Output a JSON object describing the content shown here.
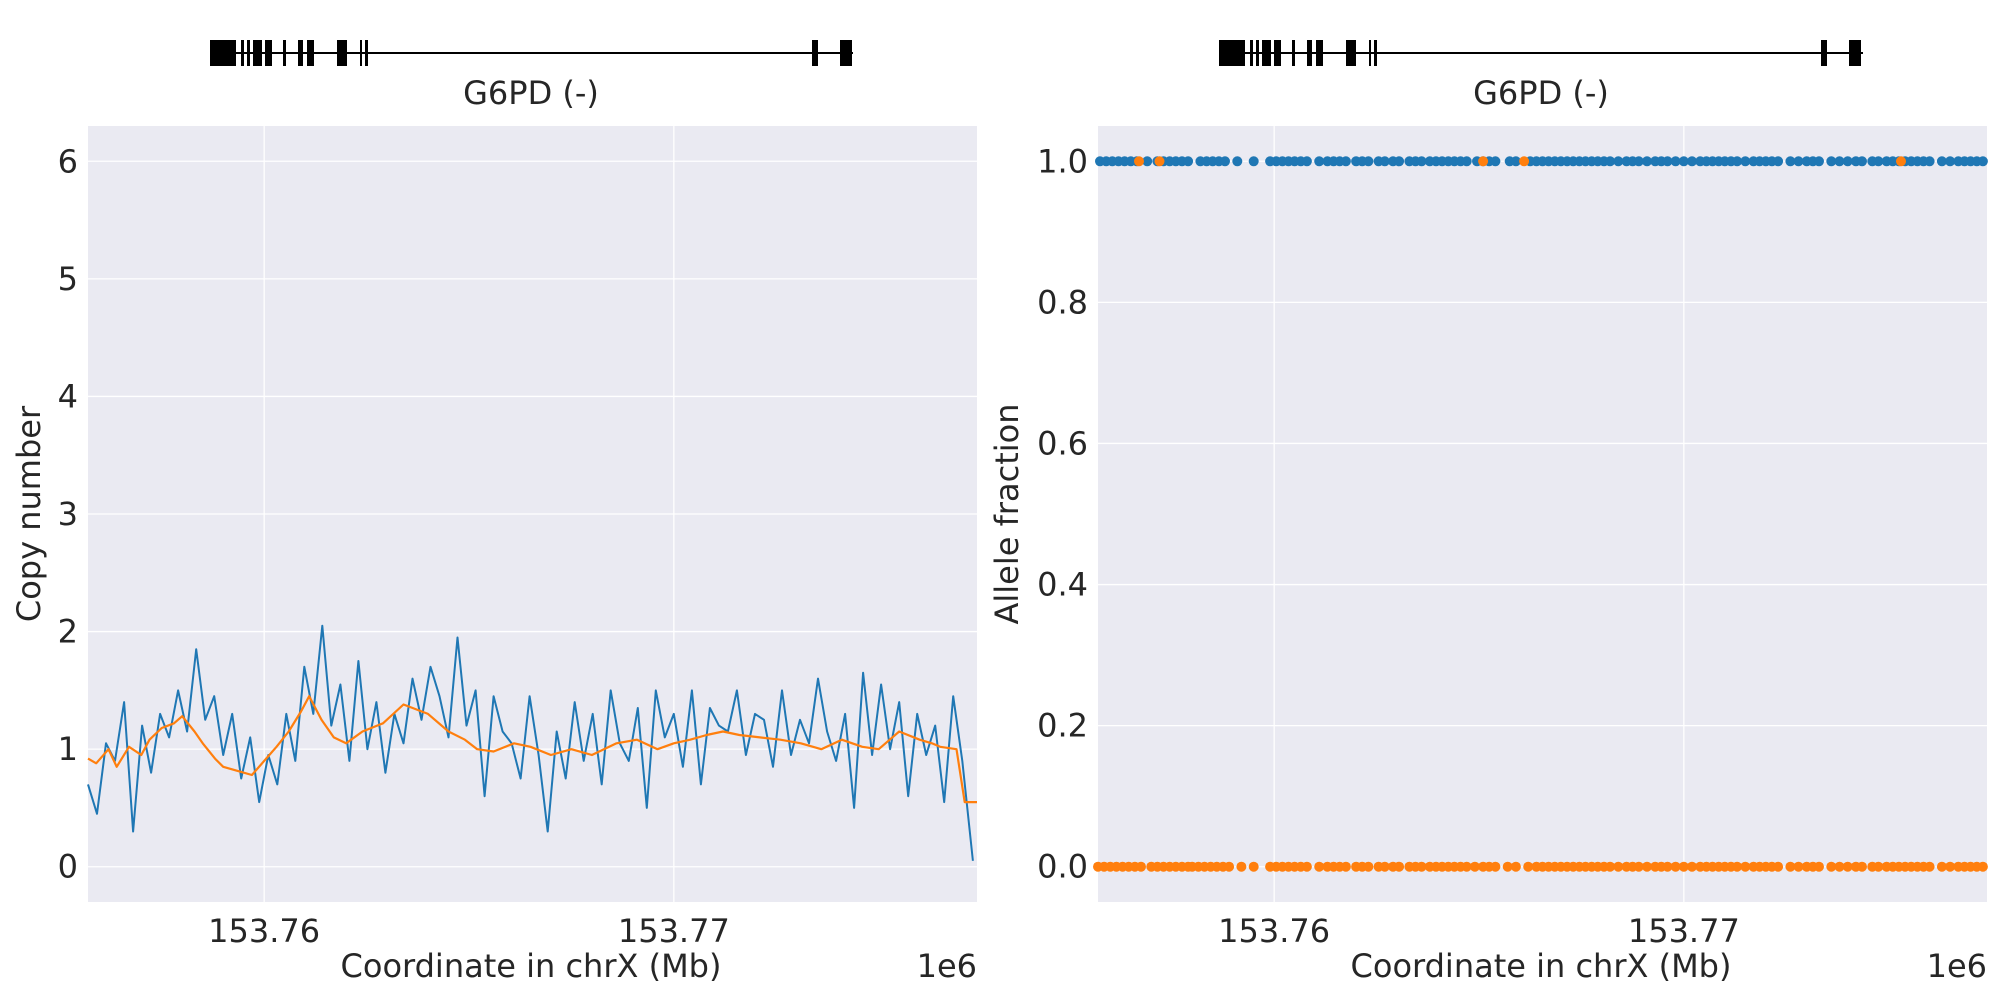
{
  "chart_data": [
    {
      "type": "line",
      "gene_track": {
        "label": "G6PD (-)"
      },
      "xlabel": "Coordinate in chrX (Mb)",
      "x_offset_label": "1e6",
      "ylabel": "Copy number",
      "xlim": [
        153.7557,
        153.7774
      ],
      "ylim": [
        -0.3,
        6.3
      ],
      "x_ticks": [
        153.76,
        153.77
      ],
      "x_tick_labels": [
        "153.76",
        "153.77"
      ],
      "y_ticks": [
        0,
        1,
        2,
        3,
        4,
        5,
        6
      ],
      "y_tick_labels": [
        "0",
        "1",
        "2",
        "3",
        "4",
        "5",
        "6"
      ],
      "grid": true,
      "series": [
        {
          "color": "#1f77b4",
          "x": [
            153.7557,
            153.75592,
            153.75614,
            153.75636,
            153.75658,
            153.7568,
            153.75702,
            153.75724,
            153.75746,
            153.75768,
            153.7579,
            153.75812,
            153.75834,
            153.75856,
            153.75878,
            153.759,
            153.75922,
            153.75944,
            153.75966,
            153.75988,
            153.7601,
            153.76032,
            153.76054,
            153.76076,
            153.76098,
            153.7612,
            153.76142,
            153.76164,
            153.76186,
            153.76208,
            153.7623,
            153.76252,
            153.76274,
            153.76296,
            153.76318,
            153.7634,
            153.76362,
            153.76384,
            153.76406,
            153.76428,
            153.7645,
            153.76472,
            153.76494,
            153.76516,
            153.76538,
            153.7656,
            153.76582,
            153.76604,
            153.76626,
            153.76648,
            153.7667,
            153.76692,
            153.76714,
            153.76736,
            153.76758,
            153.7678,
            153.76802,
            153.76824,
            153.76846,
            153.76868,
            153.7689,
            153.76912,
            153.76934,
            153.76956,
            153.76978,
            153.77,
            153.77022,
            153.77044,
            153.77066,
            153.77088,
            153.7711,
            153.77132,
            153.77154,
            153.77176,
            153.77198,
            153.7722,
            153.77242,
            153.77264,
            153.77286,
            153.77308,
            153.7733,
            153.77352,
            153.77374,
            153.77396,
            153.77418,
            153.7744,
            153.77462,
            153.77484,
            153.77506,
            153.77528,
            153.7755,
            153.77572,
            153.77594,
            153.77616,
            153.77638,
            153.7766,
            153.77682,
            153.77704,
            153.7773
          ],
          "y": [
            0.7,
            0.45,
            1.05,
            0.9,
            1.4,
            0.3,
            1.2,
            0.8,
            1.3,
            1.1,
            1.5,
            1.15,
            1.85,
            1.25,
            1.45,
            0.95,
            1.3,
            0.75,
            1.1,
            0.55,
            0.95,
            0.7,
            1.3,
            0.9,
            1.7,
            1.3,
            2.05,
            1.2,
            1.55,
            0.9,
            1.75,
            1.0,
            1.4,
            0.8,
            1.3,
            1.05,
            1.6,
            1.25,
            1.7,
            1.45,
            1.1,
            1.95,
            1.2,
            1.5,
            0.6,
            1.45,
            1.15,
            1.05,
            0.75,
            1.45,
            0.95,
            0.3,
            1.15,
            0.75,
            1.4,
            0.9,
            1.3,
            0.7,
            1.5,
            1.05,
            0.9,
            1.35,
            0.5,
            1.5,
            1.1,
            1.3,
            0.85,
            1.5,
            0.7,
            1.35,
            1.2,
            1.15,
            1.5,
            0.95,
            1.3,
            1.25,
            0.85,
            1.5,
            0.95,
            1.25,
            1.05,
            1.6,
            1.15,
            0.9,
            1.3,
            0.5,
            1.65,
            0.95,
            1.55,
            1.0,
            1.4,
            0.6,
            1.3,
            0.95,
            1.2,
            0.55,
            1.45,
            0.9,
            0.05
          ]
        },
        {
          "color": "#ff7f0e",
          "x": [
            153.7557,
            153.7559,
            153.7562,
            153.7564,
            153.7567,
            153.757,
            153.7572,
            153.7575,
            153.7578,
            153.758,
            153.7583,
            153.7585,
            153.7588,
            153.759,
            153.7593,
            153.7597,
            153.76,
            153.7603,
            153.7606,
            153.7609,
            153.7611,
            153.7614,
            153.7617,
            153.762,
            153.7624,
            153.7629,
            153.7634,
            153.764,
            153.7645,
            153.7649,
            153.7652,
            153.7656,
            153.7661,
            153.7665,
            153.767,
            153.7675,
            153.768,
            153.7686,
            153.7691,
            153.7696,
            153.77,
            153.7704,
            153.7708,
            153.7712,
            153.7716,
            153.7721,
            153.7726,
            153.7731,
            153.7736,
            153.7741,
            153.7746,
            153.775,
            153.7755,
            153.776,
            153.7763,
            153.7765,
            153.7769,
            153.7771,
            153.7774
          ],
          "y": [
            0.92,
            0.88,
            1.0,
            0.85,
            1.02,
            0.95,
            1.08,
            1.18,
            1.22,
            1.28,
            1.15,
            1.05,
            0.92,
            0.85,
            0.82,
            0.78,
            0.9,
            1.02,
            1.15,
            1.32,
            1.45,
            1.25,
            1.1,
            1.05,
            1.15,
            1.22,
            1.38,
            1.3,
            1.15,
            1.08,
            1.0,
            0.98,
            1.05,
            1.02,
            0.95,
            1.0,
            0.95,
            1.05,
            1.08,
            1.0,
            1.05,
            1.08,
            1.12,
            1.15,
            1.12,
            1.1,
            1.08,
            1.05,
            1.0,
            1.08,
            1.02,
            1.0,
            1.15,
            1.08,
            1.05,
            1.02,
            1.0,
            0.55,
            0.55
          ]
        }
      ]
    },
    {
      "type": "scatter",
      "gene_track": {
        "label": "G6PD (-)"
      },
      "xlabel": "Coordinate in chrX (Mb)",
      "x_offset_label": "1e6",
      "ylabel": "Allele fraction",
      "xlim": [
        153.7557,
        153.7774
      ],
      "ylim": [
        -0.05,
        1.05
      ],
      "x_ticks": [
        153.76,
        153.77
      ],
      "x_tick_labels": [
        "153.76",
        "153.77"
      ],
      "y_ticks": [
        0.0,
        0.2,
        0.4,
        0.6,
        0.8,
        1.0
      ],
      "y_tick_labels": [
        "0.0",
        "0.2",
        "0.4",
        "0.6",
        "0.8",
        "1.0"
      ],
      "grid": true,
      "series": [
        {
          "color": "#1f77b4",
          "x": [
            153.75575,
            153.7559,
            153.75605,
            153.7562,
            153.75635,
            153.7565,
            153.75665,
            153.7569,
            153.75715,
            153.7573,
            153.75745,
            153.7576,
            153.75775,
            153.7579,
            153.7582,
            153.75835,
            153.7585,
            153.75865,
            153.7588,
            153.7591,
            153.7595,
            153.7599,
            153.76005,
            153.7602,
            153.76035,
            153.7605,
            153.76065,
            153.7608,
            153.7611,
            153.7613,
            153.76145,
            153.7616,
            153.76175,
            153.762,
            153.76215,
            153.7623,
            153.76255,
            153.7627,
            153.7629,
            153.76305,
            153.7633,
            153.76345,
            153.7636,
            153.7638,
            153.76395,
            153.7641,
            153.76425,
            153.7644,
            153.76455,
            153.7647,
            153.76495,
            153.7651,
            153.76525,
            153.7654,
            153.76575,
            153.7659,
            153.76625,
            153.7664,
            153.76655,
            153.7667,
            153.76685,
            153.767,
            153.76715,
            153.7673,
            153.76745,
            153.7676,
            153.76775,
            153.7679,
            153.76805,
            153.7682,
            153.7684,
            153.7686,
            153.76875,
            153.7689,
            153.7691,
            153.7693,
            153.76945,
            153.7696,
            153.7698,
            153.77,
            153.7702,
            153.7704,
            153.77055,
            153.7707,
            153.77085,
            153.771,
            153.77115,
            153.7713,
            153.7715,
            153.7717,
            153.77185,
            153.772,
            153.77215,
            153.7723,
            153.7726,
            153.7728,
            153.773,
            153.77315,
            153.7733,
            153.7736,
            153.7738,
            153.774,
            153.7742,
            153.77435,
            153.7746,
            153.77475,
            153.77495,
            153.7751,
            153.77525,
            153.7754,
            153.77555,
            153.7757,
            153.77585,
            153.776,
            153.7763,
            153.7765,
            153.7767,
            153.77685,
            153.777,
            153.77715,
            153.7773
          ],
          "y": [
            1.0,
            1.0,
            1.0,
            1.0,
            1.0,
            1.0,
            1.0,
            1.0,
            1.0,
            1.0,
            1.0,
            1.0,
            1.0,
            1.0,
            1.0,
            1.0,
            1.0,
            1.0,
            1.0,
            1.0,
            1.0,
            1.0,
            1.0,
            1.0,
            1.0,
            1.0,
            1.0,
            1.0,
            1.0,
            1.0,
            1.0,
            1.0,
            1.0,
            1.0,
            1.0,
            1.0,
            1.0,
            1.0,
            1.0,
            1.0,
            1.0,
            1.0,
            1.0,
            1.0,
            1.0,
            1.0,
            1.0,
            1.0,
            1.0,
            1.0,
            1.0,
            1.0,
            1.0,
            1.0,
            1.0,
            1.0,
            1.0,
            1.0,
            1.0,
            1.0,
            1.0,
            1.0,
            1.0,
            1.0,
            1.0,
            1.0,
            1.0,
            1.0,
            1.0,
            1.0,
            1.0,
            1.0,
            1.0,
            1.0,
            1.0,
            1.0,
            1.0,
            1.0,
            1.0,
            1.0,
            1.0,
            1.0,
            1.0,
            1.0,
            1.0,
            1.0,
            1.0,
            1.0,
            1.0,
            1.0,
            1.0,
            1.0,
            1.0,
            1.0,
            1.0,
            1.0,
            1.0,
            1.0,
            1.0,
            1.0,
            1.0,
            1.0,
            1.0,
            1.0,
            1.0,
            1.0,
            1.0,
            1.0,
            1.0,
            1.0,
            1.0,
            1.0,
            1.0,
            1.0,
            1.0,
            1.0,
            1.0,
            1.0,
            1.0,
            1.0,
            1.0
          ]
        },
        {
          "color": "#ff7f0e",
          "x": [
            153.7557,
            153.75585,
            153.756,
            153.75615,
            153.7563,
            153.75645,
            153.7566,
            153.75675,
            153.757,
            153.75715,
            153.7573,
            153.75745,
            153.7576,
            153.75775,
            153.7579,
            153.758,
            153.75815,
            153.7583,
            153.75845,
            153.7586,
            153.75875,
            153.7589,
            153.7592,
            153.7595,
            153.7599,
            153.76005,
            153.7602,
            153.76035,
            153.7605,
            153.76065,
            153.7608,
            153.7611,
            153.7613,
            153.76145,
            153.7616,
            153.76175,
            153.762,
            153.76215,
            153.7623,
            153.76255,
            153.7627,
            153.7629,
            153.76305,
            153.7633,
            153.76345,
            153.7636,
            153.7638,
            153.76395,
            153.7641,
            153.76425,
            153.7644,
            153.76455,
            153.7647,
            153.7649,
            153.7651,
            153.76525,
            153.7654,
            153.7657,
            153.7659,
            153.7662,
            153.7664,
            153.76655,
            153.7667,
            153.76685,
            153.767,
            153.76715,
            153.7673,
            153.76745,
            153.7676,
            153.76775,
            153.7679,
            153.76805,
            153.7682,
            153.7684,
            153.7686,
            153.76875,
            153.7689,
            153.7691,
            153.7693,
            153.76945,
            153.7696,
            153.7698,
            153.77,
            153.7702,
            153.7704,
            153.77055,
            153.7707,
            153.77085,
            153.771,
            153.77115,
            153.7713,
            153.7715,
            153.7717,
            153.77185,
            153.772,
            153.77215,
            153.7723,
            153.7726,
            153.7728,
            153.773,
            153.77315,
            153.7733,
            153.7736,
            153.7738,
            153.774,
            153.7742,
            153.77435,
            153.7746,
            153.77475,
            153.77495,
            153.7751,
            153.77525,
            153.7754,
            153.77555,
            153.7757,
            153.77585,
            153.776,
            153.7763,
            153.7765,
            153.7767,
            153.77685,
            153.777,
            153.77715,
            153.7773,
            153.7567,
            153.7572,
            153.7651,
            153.7661,
            153.7753
          ],
          "y": [
            0.0,
            0.0,
            0.0,
            0.0,
            0.0,
            0.0,
            0.0,
            0.0,
            0.0,
            0.0,
            0.0,
            0.0,
            0.0,
            0.0,
            0.0,
            0.0,
            0.0,
            0.0,
            0.0,
            0.0,
            0.0,
            0.0,
            0.0,
            0.0,
            0.0,
            0.0,
            0.0,
            0.0,
            0.0,
            0.0,
            0.0,
            0.0,
            0.0,
            0.0,
            0.0,
            0.0,
            0.0,
            0.0,
            0.0,
            0.0,
            0.0,
            0.0,
            0.0,
            0.0,
            0.0,
            0.0,
            0.0,
            0.0,
            0.0,
            0.0,
            0.0,
            0.0,
            0.0,
            0.0,
            0.0,
            0.0,
            0.0,
            0.0,
            0.0,
            0.0,
            0.0,
            0.0,
            0.0,
            0.0,
            0.0,
            0.0,
            0.0,
            0.0,
            0.0,
            0.0,
            0.0,
            0.0,
            0.0,
            0.0,
            0.0,
            0.0,
            0.0,
            0.0,
            0.0,
            0.0,
            0.0,
            0.0,
            0.0,
            0.0,
            0.0,
            0.0,
            0.0,
            0.0,
            0.0,
            0.0,
            0.0,
            0.0,
            0.0,
            0.0,
            0.0,
            0.0,
            0.0,
            0.0,
            0.0,
            0.0,
            0.0,
            0.0,
            0.0,
            0.0,
            0.0,
            0.0,
            0.0,
            0.0,
            0.0,
            0.0,
            0.0,
            0.0,
            0.0,
            0.0,
            0.0,
            0.0,
            0.0,
            0.0,
            0.0,
            0.0,
            0.0,
            0.0,
            0.0,
            0.0,
            1.0,
            1.0,
            1.0,
            1.0,
            1.0
          ]
        }
      ]
    }
  ]
}
